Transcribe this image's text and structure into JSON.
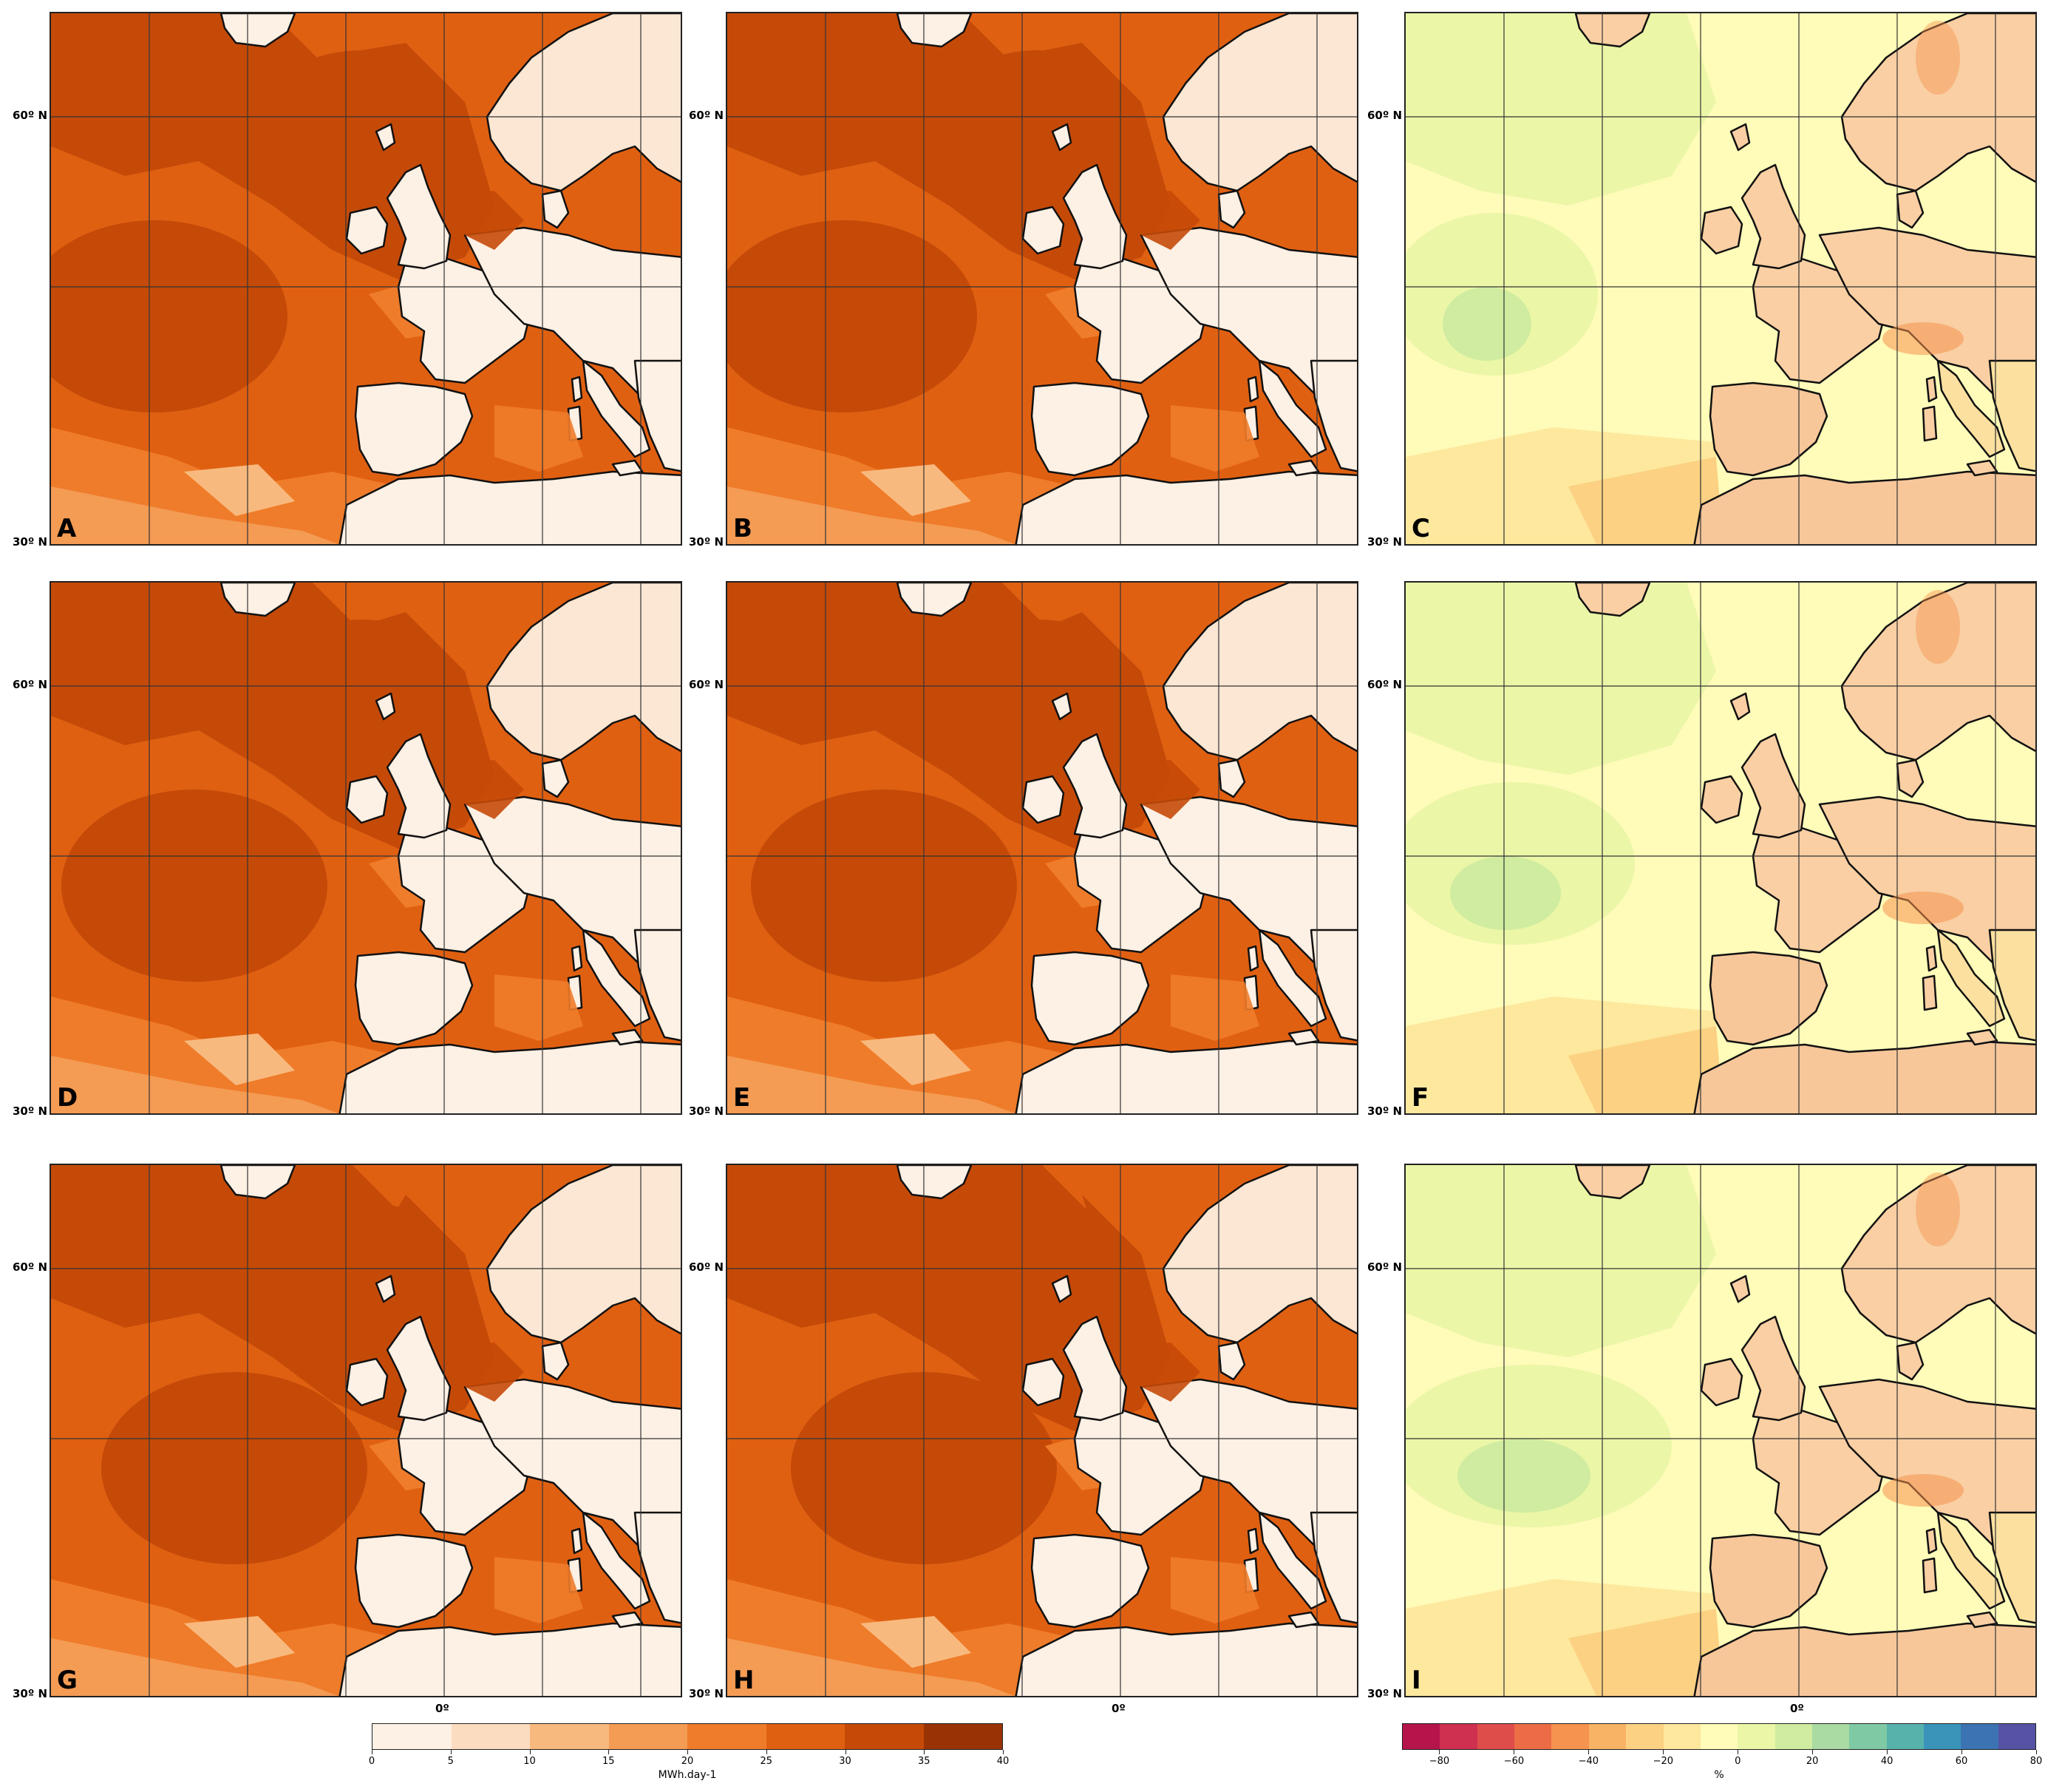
{
  "panels": [
    {
      "label": "A",
      "kind": "energy"
    },
    {
      "label": "B",
      "kind": "energy"
    },
    {
      "label": "C",
      "kind": "diff"
    },
    {
      "label": "D",
      "kind": "energy"
    },
    {
      "label": "E",
      "kind": "energy"
    },
    {
      "label": "F",
      "kind": "diff"
    },
    {
      "label": "G",
      "kind": "energy"
    },
    {
      "label": "H",
      "kind": "energy"
    },
    {
      "label": "I",
      "kind": "diff"
    }
  ],
  "axes": {
    "lat_label_top": "60º N",
    "lat_label_bottom": "30º N",
    "lon_label": "0º"
  },
  "colorbar_energy": {
    "unit": "MWh.day-1",
    "ticks": [
      "0",
      "5",
      "10",
      "15",
      "20",
      "25",
      "30",
      "35",
      "40"
    ],
    "colors": [
      "#fdf0e4",
      "#fcdcc0",
      "#f8b97e",
      "#f49b54",
      "#ef7c2a",
      "#e06012",
      "#c54a08",
      "#9a3303"
    ]
  },
  "colorbar_diff": {
    "unit": "%",
    "ticks": [
      "−80",
      "−60",
      "−40",
      "−20",
      "0",
      "20",
      "40",
      "60",
      "80"
    ],
    "colors": [
      "#b5154b",
      "#cf3050",
      "#df4d4b",
      "#ec6c45",
      "#f6934f",
      "#f9b365",
      "#fcd183",
      "#fde89d",
      "#fffbb9",
      "#ebf6a7",
      "#cfeca0",
      "#a9dba3",
      "#7fcaa5",
      "#57b2ac",
      "#3a94ba",
      "#3c73b3",
      "#5653a4"
    ]
  }
}
